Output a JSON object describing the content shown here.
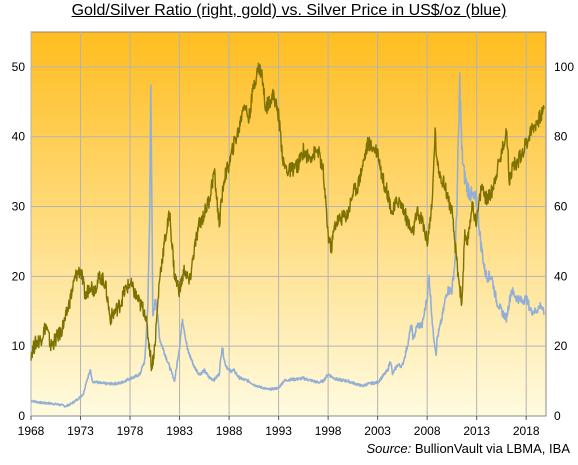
{
  "chart_data": {
    "type": "line",
    "title": "Gold/Silver Ratio (right, gold) vs. Silver Price in US$/oz (blue)",
    "source_label": "Source:",
    "source_text": "BullionVault via LBMA, IBA",
    "x_ticks": [
      "1968",
      "1973",
      "1978",
      "1983",
      "1988",
      "1993",
      "1998",
      "2003",
      "2008",
      "2013",
      "2018"
    ],
    "x_range": [
      1968,
      2020
    ],
    "y_left": {
      "range": [
        0,
        55
      ],
      "ticks": [
        0,
        10,
        20,
        30,
        40,
        50
      ]
    },
    "y_right": {
      "range": [
        0,
        110
      ],
      "ticks": [
        0,
        20,
        40,
        60,
        80,
        100
      ]
    },
    "grid": true,
    "colors": {
      "silver": "#94afd6",
      "ratio": "#7d7200",
      "bg_top": "#ffbd1f",
      "bg_bottom": "#fffbe0"
    },
    "series": [
      {
        "axis": "left",
        "color": "#94afd6",
        "x": [
          1968.0,
          1969.0,
          1970.0,
          1971.0,
          1971.5,
          1972.0,
          1972.8,
          1973.3,
          1973.6,
          1974.0,
          1974.2,
          1975.0,
          1976.0,
          1977.0,
          1978.0,
          1978.5,
          1979.0,
          1979.5,
          1979.8,
          1980.0,
          1980.1,
          1980.3,
          1980.6,
          1981.0,
          1981.5,
          1982.0,
          1982.5,
          1983.0,
          1983.3,
          1983.8,
          1984.5,
          1985.0,
          1985.5,
          1986.0,
          1986.5,
          1987.0,
          1987.3,
          1987.6,
          1988.0,
          1988.5,
          1989.0,
          1989.5,
          1990.0,
          1990.5,
          1991.0,
          1991.5,
          1992.0,
          1992.5,
          1993.0,
          1993.5,
          1994.0,
          1995.0,
          1995.5,
          1996.0,
          1997.0,
          1997.5,
          1998.0,
          1998.5,
          1999.0,
          2000.0,
          2001.0,
          2001.5,
          2002.0,
          2003.0,
          2004.0,
          2004.3,
          2004.5,
          2005.0,
          2005.5,
          2006.0,
          2006.4,
          2006.6,
          2007.0,
          2007.5,
          2008.0,
          2008.2,
          2008.6,
          2008.9,
          2009.0,
          2009.5,
          2010.0,
          2010.5,
          2010.8,
          2011.0,
          2011.3,
          2011.5,
          2011.7,
          2012.0,
          2012.3,
          2012.7,
          2013.0,
          2013.4,
          2013.8,
          2014.0,
          2014.5,
          2015.0,
          2015.5,
          2016.0,
          2016.5,
          2017.0,
          2017.5,
          2018.0,
          2018.5,
          2019.0,
          2019.5,
          2019.8
        ],
        "y": [
          2.2,
          1.9,
          1.8,
          1.6,
          1.4,
          1.7,
          2.5,
          3.2,
          5.0,
          6.5,
          5.0,
          4.7,
          4.6,
          4.7,
          5.4,
          5.6,
          6.0,
          8.0,
          16.0,
          30.0,
          49.0,
          14.0,
          17.0,
          11.0,
          9.0,
          7.0,
          5.0,
          10.0,
          14.0,
          9.5,
          7.0,
          6.0,
          6.5,
          5.5,
          5.2,
          6.0,
          10.0,
          7.5,
          6.5,
          6.5,
          5.5,
          5.2,
          5.0,
          4.5,
          4.2,
          4.0,
          3.8,
          3.9,
          4.0,
          5.0,
          5.2,
          5.3,
          5.4,
          5.2,
          4.8,
          5.0,
          6.0,
          5.5,
          5.2,
          5.0,
          4.5,
          4.3,
          4.6,
          4.8,
          6.5,
          8.0,
          6.0,
          7.3,
          7.2,
          10.0,
          13.0,
          11.0,
          13.0,
          13.0,
          17.0,
          20.0,
          12.0,
          9.0,
          11.0,
          14.0,
          18.0,
          18.0,
          22.0,
          30.0,
          48.0,
          38.0,
          35.0,
          33.0,
          32.0,
          31.0,
          31.0,
          25.0,
          21.0,
          20.0,
          20.0,
          16.5,
          15.0,
          14.0,
          18.0,
          17.0,
          16.5,
          16.8,
          15.0,
          15.0,
          16.0,
          14.5
        ]
      },
      {
        "axis": "right",
        "color": "#7d7200",
        "x": [
          1968.0,
          1968.5,
          1969.0,
          1969.5,
          1970.0,
          1970.5,
          1971.0,
          1971.5,
          1972.0,
          1972.5,
          1973.0,
          1973.5,
          1974.0,
          1974.3,
          1975.0,
          1975.5,
          1976.0,
          1976.5,
          1977.0,
          1977.5,
          1978.0,
          1978.5,
          1979.0,
          1979.5,
          1980.0,
          1980.2,
          1980.5,
          1981.0,
          1981.5,
          1982.0,
          1982.5,
          1983.0,
          1983.5,
          1984.0,
          1984.5,
          1985.0,
          1985.5,
          1986.0,
          1986.5,
          1987.0,
          1987.5,
          1988.0,
          1988.5,
          1989.0,
          1989.5,
          1990.0,
          1990.5,
          1991.0,
          1991.3,
          1991.7,
          1992.0,
          1992.5,
          1993.0,
          1993.5,
          1994.0,
          1995.0,
          1995.5,
          1996.0,
          1997.0,
          1997.5,
          1998.0,
          1998.3,
          1998.7,
          1999.0,
          2000.0,
          2000.5,
          2001.0,
          2001.5,
          2002.0,
          2003.0,
          2003.5,
          2004.0,
          2004.5,
          2005.0,
          2005.5,
          2006.0,
          2006.5,
          2007.0,
          2007.5,
          2008.0,
          2008.5,
          2008.8,
          2009.0,
          2009.5,
          2010.0,
          2010.5,
          2011.0,
          2011.5,
          2011.8,
          2012.0,
          2012.5,
          2013.0,
          2013.5,
          2014.0,
          2014.5,
          2015.0,
          2015.5,
          2016.0,
          2016.3,
          2016.7,
          2017.0,
          2017.5,
          2018.0,
          2018.5,
          2019.0,
          2019.5,
          2019.8
        ],
        "y": [
          18.0,
          21.0,
          22.0,
          26.0,
          20.0,
          22.0,
          24.0,
          28.0,
          34.0,
          40.0,
          42.0,
          34.0,
          38.0,
          36.0,
          40.0,
          38.0,
          28.0,
          30.0,
          32.0,
          36.0,
          38.0,
          35.0,
          32.0,
          30.0,
          19.0,
          14.0,
          20.0,
          40.0,
          50.0,
          58.0,
          40.0,
          36.0,
          42.0,
          38.0,
          48.0,
          55.0,
          58.0,
          62.0,
          70.0,
          55.0,
          68.0,
          72.0,
          78.0,
          82.0,
          90.0,
          85.0,
          95.0,
          100.0,
          98.0,
          88.0,
          90.0,
          92.0,
          86.0,
          72.0,
          70.0,
          72.0,
          76.0,
          74.0,
          76.0,
          70.0,
          52.0,
          48.0,
          55.0,
          56.0,
          58.0,
          64.0,
          66.0,
          72.0,
          78.0,
          76.0,
          68.0,
          64.0,
          58.0,
          62.0,
          60.0,
          56.0,
          52.0,
          58.0,
          56.0,
          50.0,
          60.0,
          82.0,
          72.0,
          68.0,
          64.0,
          58.0,
          44.0,
          32.0,
          52.0,
          48.0,
          60.0,
          56.0,
          66.0,
          62.0,
          64.0,
          70.0,
          75.0,
          82.0,
          68.0,
          72.0,
          72.0,
          75.0,
          78.0,
          82.0,
          84.0,
          86.0,
          88.0
        ]
      }
    ]
  }
}
